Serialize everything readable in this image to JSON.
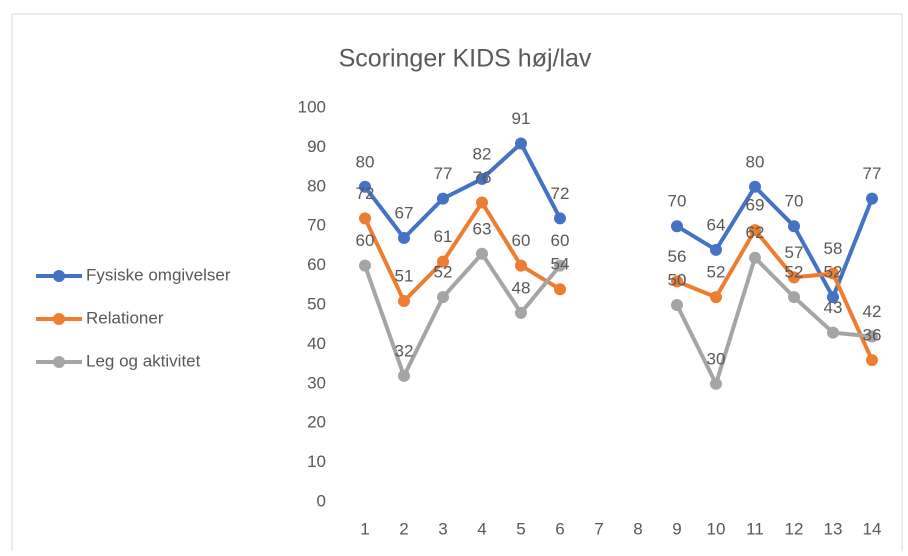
{
  "chart_data": {
    "type": "line",
    "title": "Scoringer KIDS høj/lav",
    "categories": [
      "1",
      "2",
      "3",
      "4",
      "5",
      "6",
      "7",
      "8",
      "9",
      "10",
      "11",
      "12",
      "13",
      "14"
    ],
    "series": [
      {
        "name": "Fysiske omgivelser",
        "color": "#4472c4",
        "values": [
          80,
          67,
          77,
          82,
          91,
          72,
          null,
          null,
          70,
          64,
          80,
          70,
          52,
          77
        ]
      },
      {
        "name": "Relationer",
        "color": "#ed7d31",
        "values": [
          72,
          51,
          61,
          76,
          60,
          54,
          null,
          null,
          56,
          52,
          69,
          57,
          58,
          36
        ]
      },
      {
        "name": "Leg og aktivitet",
        "color": "#a5a5a5",
        "values": [
          60,
          32,
          52,
          63,
          48,
          60,
          null,
          null,
          50,
          30,
          62,
          52,
          43,
          42
        ]
      }
    ],
    "ylim": [
      0,
      100
    ],
    "yticks": [
      0,
      10,
      20,
      30,
      40,
      50,
      60,
      70,
      80,
      90,
      100
    ],
    "grid": false,
    "legend": "left"
  }
}
